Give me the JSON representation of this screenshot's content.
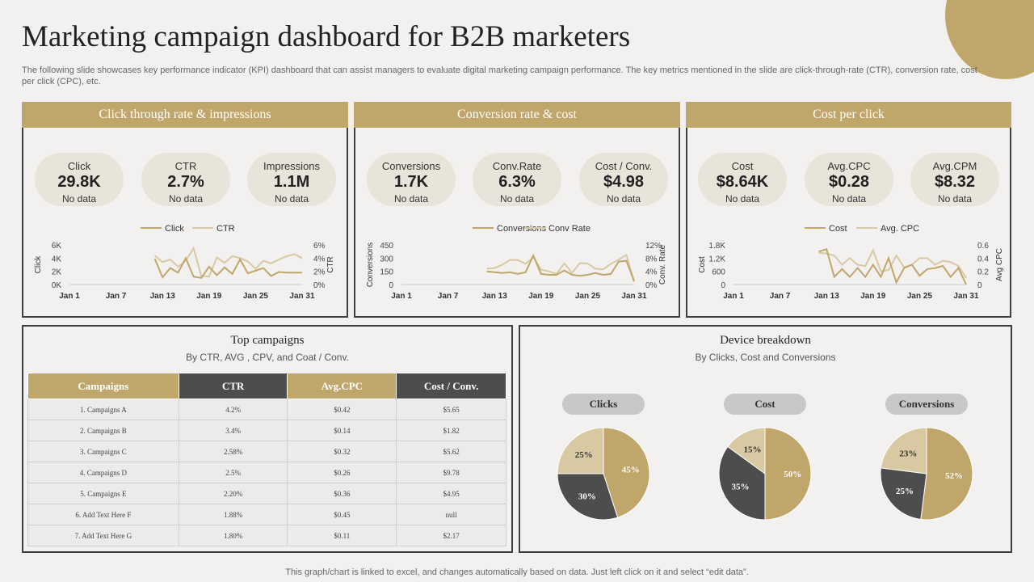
{
  "title": "Marketing campaign dashboard for B2B marketers",
  "subtitle": "The following slide showcases key performance indicator (KPI) dashboard that can assist managers to evaluate digital marketing campaign performance. The key metrics mentioned in the slide are click-through-rate (CTR), conversion rate, cost per click (CPC), etc.",
  "footer": "This graph/chart is linked to excel,  and changes automatically based on data. Just left click on it and select “edit data”.",
  "colors": {
    "gold": "#c0a66a",
    "light_gold": "#d9c9a3",
    "dark": "#4d4d4d",
    "panel_border": "#3f3f3f"
  },
  "panels": [
    {
      "header": "Click through rate & impressions",
      "kpis": [
        {
          "label": "Click",
          "value": "29.8K",
          "note": "No data"
        },
        {
          "label": "CTR",
          "value": "2.7%",
          "note": "No data"
        },
        {
          "label": "Impressions",
          "value": "1.1M",
          "note": "No data"
        }
      ]
    },
    {
      "header": "Conversion rate & cost",
      "kpis": [
        {
          "label": "Conversions",
          "value": "1.7K",
          "note": "No data"
        },
        {
          "label": "Conv.Rate",
          "value": "6.3%",
          "note": "No data"
        },
        {
          "label": "Cost / Conv.",
          "value": "$4.98",
          "note": "No data"
        }
      ]
    },
    {
      "header": "Cost per click",
      "kpis": [
        {
          "label": "Cost",
          "value": "$8.64K",
          "note": "No data"
        },
        {
          "label": "Avg.CPC",
          "value": "$0.28",
          "note": "No data"
        },
        {
          "label": "Avg.CPM",
          "value": "$8.32",
          "note": "No data"
        }
      ]
    }
  ],
  "top_campaigns": {
    "title": "Top campaigns",
    "subtitle": "By CTR,  AVG , CPV, and Coat  / Conv.",
    "headers": [
      "Campaigns",
      "CTR",
      "Avg.CPC",
      "Cost / Conv."
    ],
    "rows": [
      [
        "1. Campaigns A",
        "4.2%",
        "$0.42",
        "$5.65"
      ],
      [
        "2. Campaigns B",
        "3.4%",
        "$0.14",
        "$1.82"
      ],
      [
        "3. Campaigns C",
        "2.58%",
        "$0.32",
        "$5.62"
      ],
      [
        "4. Campaigns D",
        "2.5%",
        "$0.26",
        "$9.78"
      ],
      [
        "5. Campaigns E",
        "2.20%",
        "$0.36",
        "$4.95"
      ],
      [
        "6. Add Text Here F",
        "1.88%",
        "$0.45",
        "null"
      ],
      [
        "7. Add Text Here G",
        "1.80%",
        "$0.11",
        "$2.17"
      ]
    ]
  },
  "device_breakdown": {
    "title": "Device breakdown",
    "subtitle": "By Clicks, Cost and Conversions"
  },
  "chart_data": [
    {
      "type": "line",
      "legend": [
        "Click",
        "CTR"
      ],
      "x_ticks": [
        "Jan 1",
        "Jan 7",
        "Jan 13",
        "Jan 19",
        "Jan 25",
        "Jan 31"
      ],
      "ylabel": "Click",
      "y2label": "CTR",
      "y_ticks": [
        "6K",
        "4K",
        "2K",
        "0K"
      ],
      "y2_ticks": [
        "6%",
        "4%",
        "2%",
        "0%"
      ],
      "ylim": [
        0,
        6000
      ],
      "y2lim": [
        0,
        6
      ],
      "x": [
        12,
        13,
        14,
        15,
        16,
        17,
        18,
        19,
        20,
        21,
        22,
        23,
        24,
        25,
        26,
        27,
        28,
        29,
        30,
        31
      ],
      "series": [
        {
          "name": "Click",
          "values": [
            3900,
            1100,
            2500,
            1800,
            4000,
            1200,
            1000,
            2700,
            1400,
            2600,
            1600,
            3800,
            1700,
            2100,
            2500,
            1300,
            1900,
            1800,
            1800,
            1800
          ]
        },
        {
          "name": "CTR",
          "values": [
            4.4,
            3.4,
            3.8,
            2.7,
            3.6,
            5.5,
            1.3,
            1.2,
            4.1,
            3.3,
            4.3,
            4.0,
            3.5,
            2.4,
            3.6,
            3.2,
            3.8,
            4.3,
            4.6,
            4.0
          ]
        }
      ]
    },
    {
      "type": "line",
      "legend": [
        "Conversions",
        "Conv Rate"
      ],
      "x_ticks": [
        "Jan 1",
        "Jan 7",
        "Jan 13",
        "Jan 19",
        "Jan 25",
        "Jan 31"
      ],
      "ylabel": "Conversions",
      "y2label": "Conv. Rate",
      "y_ticks": [
        "450",
        "300",
        "150",
        "0"
      ],
      "y2_ticks": [
        "12%",
        "8%",
        "4%",
        "0%"
      ],
      "ylim": [
        0,
        450
      ],
      "y2lim": [
        0,
        12
      ],
      "x": [
        12,
        13,
        14,
        15,
        16,
        17,
        18,
        19,
        20,
        21,
        22,
        23,
        24,
        25,
        26,
        27,
        28,
        29,
        30,
        31
      ],
      "series": [
        {
          "name": "Conversions",
          "values": [
            150,
            140,
            130,
            140,
            120,
            140,
            330,
            120,
            110,
            110,
            160,
            110,
            100,
            110,
            130,
            110,
            120,
            260,
            270,
            40
          ]
        },
        {
          "name": "Conv Rate",
          "values": [
            4.8,
            5.0,
            6.0,
            7.5,
            7.4,
            6.3,
            8.3,
            4.5,
            4.0,
            3.2,
            6.4,
            3.5,
            6.5,
            6.4,
            4.8,
            4.6,
            6.3,
            7.5,
            9.0,
            0.8
          ]
        }
      ]
    },
    {
      "type": "line",
      "legend": [
        "Cost",
        "Avg. CPC"
      ],
      "x_ticks": [
        "Jan 1",
        "Jan 7",
        "Jan 13",
        "Jan 19",
        "Jan 25",
        "Jan 31"
      ],
      "ylabel": "Cost",
      "y2label": "Avg CPC",
      "y_ticks": [
        "1.8K",
        "1.2K",
        "600",
        "0"
      ],
      "y2_ticks": [
        "0.6",
        "0.4",
        "0.2",
        "0"
      ],
      "ylim": [
        0,
        1800
      ],
      "y2lim": [
        0,
        0.6
      ],
      "x": [
        12,
        13,
        14,
        15,
        16,
        17,
        18,
        19,
        20,
        21,
        22,
        23,
        24,
        25,
        26,
        27,
        28,
        29,
        30,
        31
      ],
      "series": [
        {
          "name": "Cost",
          "values": [
            1500,
            1600,
            350,
            700,
            350,
            750,
            350,
            900,
            350,
            1200,
            100,
            750,
            900,
            400,
            700,
            750,
            850,
            350,
            750,
            0
          ]
        },
        {
          "name": "Avg. CPC",
          "values": [
            0.48,
            0.47,
            0.44,
            0.3,
            0.4,
            0.3,
            0.28,
            0.52,
            0.2,
            0.22,
            0.44,
            0.26,
            0.3,
            0.4,
            0.4,
            0.3,
            0.36,
            0.34,
            0.28,
            0.1
          ]
        }
      ]
    },
    {
      "type": "pie",
      "title": "Clicks",
      "labels": [
        "45%",
        "30%",
        "25%"
      ],
      "values": [
        45,
        30,
        25
      ],
      "colors": [
        "#c0a66a",
        "#4d4d4d",
        "#d9c9a3"
      ]
    },
    {
      "type": "pie",
      "title": "Cost",
      "labels": [
        "50%",
        "35%",
        "15%"
      ],
      "values": [
        50,
        35,
        15
      ],
      "colors": [
        "#c0a66a",
        "#4d4d4d",
        "#d9c9a3"
      ]
    },
    {
      "type": "pie",
      "title": "Conversions",
      "labels": [
        "52%",
        "25%",
        "23%"
      ],
      "values": [
        52,
        25,
        23
      ],
      "colors": [
        "#c0a66a",
        "#4d4d4d",
        "#d9c9a3"
      ]
    }
  ]
}
